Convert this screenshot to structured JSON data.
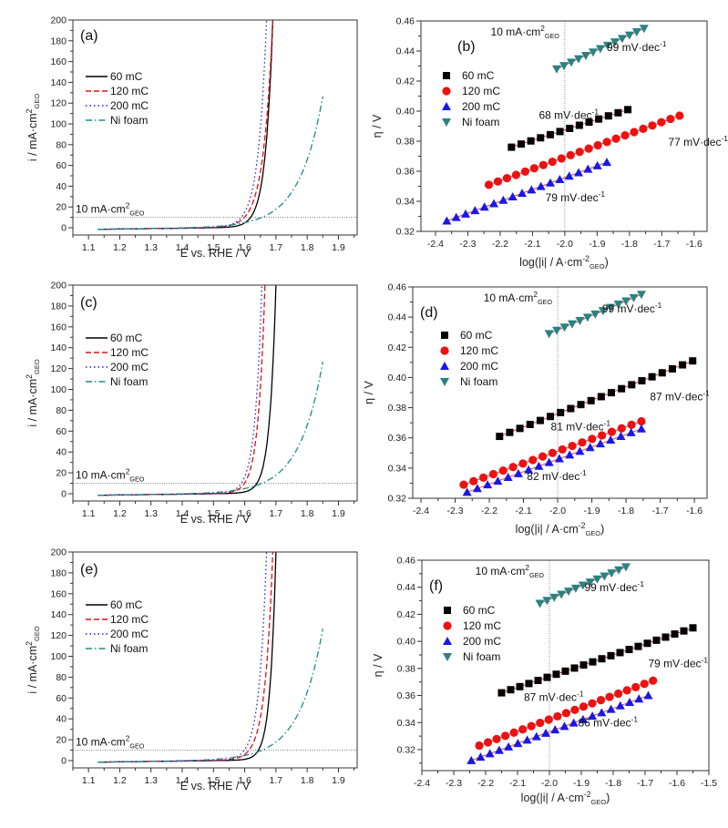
{
  "chart_data": [
    {
      "panel": "(a)",
      "type": "line",
      "xlabel": {
        "text": "E vs. RHE / V"
      },
      "ylabel": {
        "text": "i / mA·cm",
        "sup": "2",
        "sub": "GEO"
      },
      "xlim": [
        1.05,
        1.96
      ],
      "ylim": [
        -7,
        200
      ],
      "xticks": [
        1.1,
        1.2,
        1.3,
        1.4,
        1.5,
        1.6,
        1.7,
        1.8,
        1.9
      ],
      "yticks": [
        0,
        20,
        40,
        60,
        80,
        100,
        120,
        140,
        160,
        180,
        200
      ],
      "reference_line": {
        "y": 10,
        "label": {
          "text": "10 mA·cm",
          "sup": "2",
          "sub": "GEO"
        }
      },
      "series": [
        {
          "name": "60 mC",
          "color": "#000000",
          "style": "solid",
          "E_start": 1.13,
          "E_at_10": 1.62,
          "E_at_200": 1.69
        },
        {
          "name": "120 mC",
          "color": "#e01010",
          "style": "dash",
          "E_start": 1.13,
          "E_at_10": 1.6,
          "E_at_200": 1.69
        },
        {
          "name": "200 mC",
          "color": "#2020e0",
          "style": "dot",
          "E_start": 1.13,
          "E_at_10": 1.59,
          "E_at_200": 1.67
        },
        {
          "name": "Ni foam",
          "color": "#1f8a8a",
          "style": "dashdot",
          "E_start": 1.13,
          "E_at_10": 1.66,
          "E_end": 1.85,
          "i_end": 125
        }
      ]
    },
    {
      "panel": "(b)",
      "type": "scatter",
      "xlabel": {
        "text": "log(|i| / A·cm",
        "sup": "-2",
        "sub": "GEO",
        "tail": ")"
      },
      "ylabel": {
        "text": "η / V"
      },
      "xlim": [
        -2.445,
        -1.56
      ],
      "ylim": [
        0.32,
        0.46
      ],
      "xticks": [
        -2.4,
        -2.3,
        -2.2,
        -2.1,
        -2.0,
        -1.9,
        -1.8,
        -1.7,
        -1.6
      ],
      "yticks": [
        0.32,
        0.34,
        0.36,
        0.38,
        0.4,
        0.42,
        0.44,
        0.46
      ],
      "reference_line": {
        "x": -2.0,
        "label": {
          "text": "10 mA·cm",
          "sup": "2",
          "sub": "GEO"
        }
      },
      "series": [
        {
          "name": "60 mC",
          "color": "#000000",
          "marker": "square",
          "x_range": [
            -2.165,
            -1.805
          ],
          "y_range": [
            0.376,
            0.401
          ],
          "n": 13
        },
        {
          "name": "120 mC",
          "color": "#ee1111",
          "marker": "circle",
          "x_range": [
            -2.235,
            -1.645
          ],
          "y_range": [
            0.351,
            0.397
          ],
          "n": 22
        },
        {
          "name": "200 mC",
          "color": "#1818e8",
          "marker": "triangle-up",
          "x_range": [
            -2.365,
            -1.87
          ],
          "y_range": [
            0.327,
            0.366
          ],
          "n": 18
        },
        {
          "name": "Ni foam",
          "color": "#2a8282",
          "marker": "triangle-down",
          "x_range": [
            -2.025,
            -1.755
          ],
          "y_range": [
            0.428,
            0.455
          ],
          "n": 13
        }
      ],
      "annotations": [
        {
          "text": "99 mV·dec",
          "sup": "-1",
          "x": -1.87,
          "y": 0.44
        },
        {
          "text": "68 mV·dec",
          "sup": "-1",
          "x": -2.08,
          "y": 0.395
        },
        {
          "text": "77 mV·dec",
          "sup": "-1",
          "x": -1.68,
          "y": 0.377
        },
        {
          "text": "79 mV·dec",
          "sup": "-1",
          "x": -2.06,
          "y": 0.34
        }
      ]
    },
    {
      "panel": "(c)",
      "type": "line",
      "xlabel": {
        "text": "E vs. RHE / V"
      },
      "ylabel": {
        "text": "i / mA·cm",
        "sup": "2",
        "sub": "GEO"
      },
      "xlim": [
        1.05,
        1.96
      ],
      "ylim": [
        -7,
        200
      ],
      "xticks": [
        1.1,
        1.2,
        1.3,
        1.4,
        1.5,
        1.6,
        1.7,
        1.8,
        1.9
      ],
      "yticks": [
        0,
        20,
        40,
        60,
        80,
        100,
        120,
        140,
        160,
        180,
        200
      ],
      "reference_line": {
        "y": 10,
        "label": {
          "text": "10 mA·cm",
          "sup": "2",
          "sub": "GEO"
        }
      },
      "series": [
        {
          "name": "60 mC",
          "color": "#000000",
          "style": "solid",
          "E_start": 1.13,
          "E_at_10": 1.64,
          "E_at_200": 1.7
        },
        {
          "name": "120 mC",
          "color": "#e01010",
          "style": "dash",
          "E_start": 1.13,
          "E_at_10": 1.6,
          "E_at_200": 1.665
        },
        {
          "name": "200 mC",
          "color": "#2020e0",
          "style": "dot",
          "E_start": 1.13,
          "E_at_10": 1.59,
          "E_at_200": 1.655
        },
        {
          "name": "Ni foam",
          "color": "#1f8a8a",
          "style": "dashdot",
          "E_start": 1.13,
          "E_at_10": 1.66,
          "E_end": 1.85,
          "i_end": 125
        }
      ]
    },
    {
      "panel": "(d)",
      "type": "scatter",
      "xlabel": {
        "text": "log(|i| / A·cm",
        "sup": "-2",
        "sub": "GEO",
        "tail": ")"
      },
      "ylabel": {
        "text": "η / V"
      },
      "xlim": [
        -2.424,
        -1.563
      ],
      "ylim": [
        0.32,
        0.46
      ],
      "xticks": [
        -2.4,
        -2.3,
        -2.2,
        -2.1,
        -2.0,
        -1.9,
        -1.8,
        -1.7,
        -1.6
      ],
      "yticks": [
        0.32,
        0.34,
        0.36,
        0.38,
        0.4,
        0.42,
        0.44,
        0.46
      ],
      "reference_line": {
        "x": -2.0,
        "label": {
          "text": "10 mA·cm",
          "sup": "2",
          "sub": "GEO"
        }
      },
      "series": [
        {
          "name": "60 mC",
          "color": "#000000",
          "marker": "square",
          "x_range": [
            -2.17,
            -1.605
          ],
          "y_range": [
            0.361,
            0.411
          ],
          "n": 20
        },
        {
          "name": "120 mC",
          "color": "#ee1111",
          "marker": "circle",
          "x_range": [
            -2.275,
            -1.755
          ],
          "y_range": [
            0.329,
            0.371
          ],
          "n": 19
        },
        {
          "name": "200 mC",
          "color": "#1818e8",
          "marker": "triangle-up",
          "x_range": [
            -2.265,
            -1.755
          ],
          "y_range": [
            0.324,
            0.366
          ],
          "n": 18
        },
        {
          "name": "Ni foam",
          "color": "#2a8282",
          "marker": "triangle-down",
          "x_range": [
            -2.025,
            -1.755
          ],
          "y_range": [
            0.429,
            0.455
          ],
          "n": 13
        }
      ],
      "annotations": [
        {
          "text": "99 mV·dec",
          "sup": "-1",
          "x": -1.87,
          "y": 0.443
        },
        {
          "text": "87 mV·dec",
          "sup": "-1",
          "x": -1.73,
          "y": 0.385
        },
        {
          "text": "81 mV·dec",
          "sup": "-1",
          "x": -2.02,
          "y": 0.365
        },
        {
          "text": "82 mV·dec",
          "sup": "-1",
          "x": -2.09,
          "y": 0.332
        }
      ]
    },
    {
      "panel": "(e)",
      "type": "line",
      "xlabel": {
        "text": "E vs. RHE / V"
      },
      "ylabel": {
        "text": "i / mA·cm",
        "sup": "2",
        "sub": "GEO"
      },
      "xlim": [
        1.05,
        1.96
      ],
      "ylim": [
        -7,
        200
      ],
      "xticks": [
        1.1,
        1.2,
        1.3,
        1.4,
        1.5,
        1.6,
        1.7,
        1.8,
        1.9
      ],
      "yticks": [
        0,
        20,
        40,
        60,
        80,
        100,
        120,
        140,
        160,
        180,
        200
      ],
      "reference_line": {
        "y": 10,
        "label": {
          "text": "10 mA·cm",
          "sup": "2",
          "sub": "GEO"
        }
      },
      "series": [
        {
          "name": "60 mC",
          "color": "#000000",
          "style": "solid",
          "E_start": 1.13,
          "E_at_10": 1.645,
          "E_at_200": 1.7
        },
        {
          "name": "120 mC",
          "color": "#e01010",
          "style": "dash",
          "E_start": 1.13,
          "E_at_10": 1.615,
          "E_at_200": 1.69
        },
        {
          "name": "200 mC",
          "color": "#2020e0",
          "style": "dot",
          "E_start": 1.13,
          "E_at_10": 1.6,
          "E_at_200": 1.67
        },
        {
          "name": "Ni foam",
          "color": "#1f8a8a",
          "style": "dashdot",
          "E_start": 1.13,
          "E_at_10": 1.66,
          "E_end": 1.85,
          "i_end": 125
        }
      ]
    },
    {
      "panel": "(f)",
      "type": "scatter",
      "xlabel": {
        "text": "log(|i| / A·cm",
        "sup": "-2",
        "sub": "GEO",
        "tail": ")"
      },
      "ylabel": {
        "text": "η / V"
      },
      "xlim": [
        -2.4,
        -1.5
      ],
      "ylim": [
        0.3045,
        0.46
      ],
      "xticks": [
        -2.4,
        -2.3,
        -2.2,
        -2.1,
        -2.0,
        -1.9,
        -1.8,
        -1.7,
        -1.6,
        -1.5
      ],
      "yticks": [
        0.32,
        0.34,
        0.36,
        0.38,
        0.4,
        0.42,
        0.44,
        0.46
      ],
      "reference_line": {
        "x": -2.0,
        "label": {
          "text": "10 mA·cm",
          "sup": "2",
          "sub": "GEO"
        }
      },
      "series": [
        {
          "name": "60 mC",
          "color": "#000000",
          "marker": "square",
          "x_range": [
            -2.15,
            -1.55
          ],
          "y_range": [
            0.362,
            0.41
          ],
          "n": 22
        },
        {
          "name": "120 mC",
          "color": "#ee1111",
          "marker": "circle",
          "x_range": [
            -2.22,
            -1.675
          ],
          "y_range": [
            0.323,
            0.371
          ],
          "n": 21
        },
        {
          "name": "200 mC",
          "color": "#1818e8",
          "marker": "triangle-up",
          "x_range": [
            -2.245,
            -1.69
          ],
          "y_range": [
            0.312,
            0.36
          ],
          "n": 20
        },
        {
          "name": "Ni foam",
          "color": "#2a8282",
          "marker": "triangle-down",
          "x_range": [
            -2.03,
            -1.76
          ],
          "y_range": [
            0.428,
            0.455
          ],
          "n": 13
        }
      ],
      "annotations": [
        {
          "text": "99 mV·dec",
          "sup": "-1",
          "x": -1.89,
          "y": 0.437
        },
        {
          "text": "79 mV·dec",
          "sup": "-1",
          "x": -1.69,
          "y": 0.381
        },
        {
          "text": "87 mV·dec",
          "sup": "-1",
          "x": -2.08,
          "y": 0.356
        },
        {
          "text": "86 mV·dec",
          "sup": "-1",
          "x": -1.91,
          "y": 0.337
        }
      ]
    }
  ]
}
